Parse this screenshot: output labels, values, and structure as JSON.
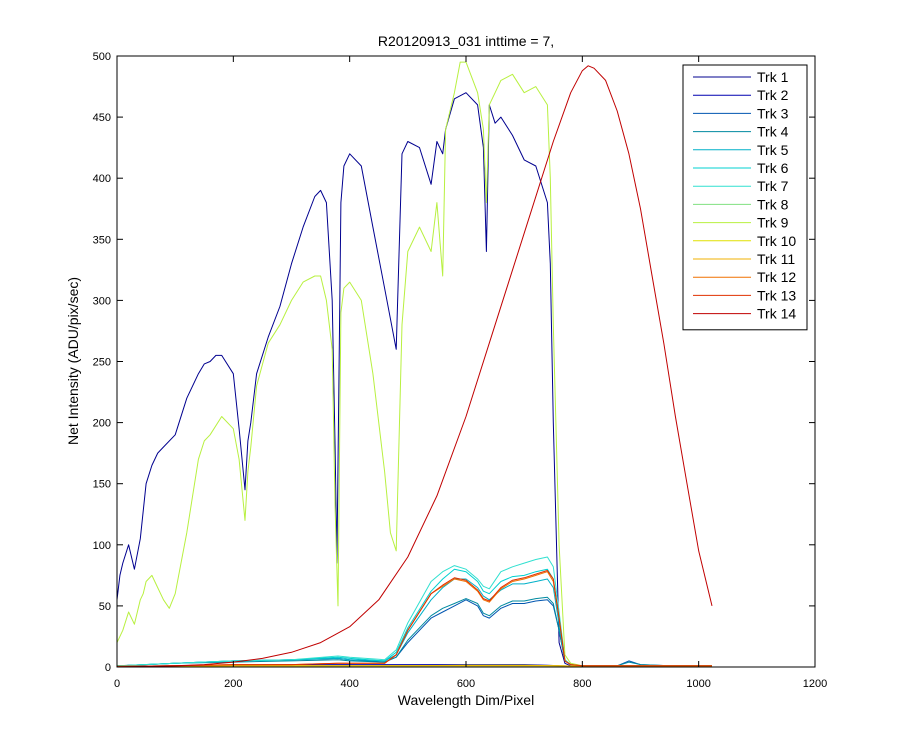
{
  "chart_data": {
    "type": "line",
    "title": "R20120913_031 inttime = 7,",
    "xlabel": "Wavelength Dim/Pixel",
    "ylabel": "Net Intensity (ADU/pix/sec)",
    "xlim": [
      0,
      1200
    ],
    "ylim": [
      0,
      500
    ],
    "xticks": [
      0,
      200,
      400,
      600,
      800,
      1000,
      1200
    ],
    "yticks": [
      0,
      50,
      100,
      150,
      200,
      250,
      300,
      350,
      400,
      450,
      500
    ],
    "grid": false,
    "legend_position": "top-right",
    "series": [
      {
        "name": "Trk 1",
        "color": "#00008f",
        "x": [
          0,
          5,
          10,
          20,
          30,
          40,
          50,
          60,
          70,
          80,
          100,
          120,
          140,
          150,
          160,
          170,
          180,
          200,
          210,
          220,
          225,
          230,
          240,
          260,
          280,
          300,
          320,
          340,
          350,
          360,
          370,
          375,
          378,
          385,
          390,
          400,
          420,
          440,
          460,
          470,
          480,
          490,
          500,
          520,
          540,
          550,
          560,
          565,
          580,
          600,
          620,
          630,
          635,
          640,
          650,
          660,
          680,
          700,
          720,
          740,
          745,
          750,
          760,
          770,
          780,
          800,
          850,
          900,
          950,
          1000,
          1023
        ],
        "y": [
          55,
          75,
          85,
          100,
          80,
          105,
          150,
          165,
          175,
          180,
          190,
          220,
          240,
          248,
          250,
          255,
          255,
          240,
          195,
          145,
          185,
          200,
          240,
          270,
          295,
          330,
          360,
          385,
          390,
          380,
          300,
          180,
          85,
          380,
          410,
          420,
          410,
          360,
          310,
          285,
          260,
          420,
          430,
          425,
          395,
          430,
          420,
          440,
          465,
          470,
          460,
          425,
          340,
          460,
          445,
          450,
          435,
          415,
          410,
          380,
          330,
          200,
          20,
          3,
          1,
          0.5,
          0.5,
          0.5,
          0.5,
          0.5,
          0.5
        ]
      },
      {
        "name": "Trk 2",
        "color": "#0000b0",
        "x": [
          0,
          100,
          200,
          300,
          400,
          500,
          600,
          700,
          740,
          760,
          800,
          1023
        ],
        "y": [
          0.5,
          1,
          1.5,
          2,
          2,
          2,
          2,
          2,
          1.5,
          1,
          0.5,
          0.5
        ]
      },
      {
        "name": "Trk 3",
        "color": "#0055b0",
        "x": [
          0,
          50,
          100,
          200,
          300,
          380,
          400,
          460,
          480,
          500,
          540,
          560,
          580,
          600,
          620,
          630,
          640,
          660,
          680,
          700,
          720,
          740,
          750,
          760,
          770,
          780,
          800,
          860,
          880,
          900,
          950,
          1023
        ],
        "y": [
          1,
          2,
          3,
          5,
          6,
          7,
          6,
          4,
          8,
          20,
          40,
          45,
          50,
          55,
          50,
          42,
          40,
          48,
          52,
          52,
          54,
          55,
          50,
          30,
          5,
          2,
          1,
          1,
          5,
          2,
          1,
          1
        ]
      },
      {
        "name": "Trk 4",
        "color": "#008aa0",
        "x": [
          0,
          50,
          100,
          200,
          300,
          380,
          400,
          460,
          480,
          500,
          540,
          560,
          580,
          600,
          620,
          630,
          640,
          660,
          680,
          700,
          720,
          740,
          750,
          760,
          770,
          780,
          800,
          860,
          880,
          900,
          950,
          1023
        ],
        "y": [
          1,
          2,
          3,
          4,
          5,
          6,
          5,
          4,
          8,
          22,
          42,
          48,
          52,
          56,
          52,
          44,
          42,
          50,
          54,
          54,
          56,
          57,
          52,
          30,
          5,
          2,
          1,
          1,
          4,
          2,
          1,
          1
        ]
      },
      {
        "name": "Trk 5",
        "color": "#00b0c8",
        "x": [
          0,
          100,
          200,
          300,
          380,
          400,
          460,
          480,
          500,
          540,
          560,
          580,
          600,
          620,
          630,
          640,
          660,
          680,
          700,
          720,
          740,
          750,
          760,
          770,
          780,
          800,
          1023
        ],
        "y": [
          1,
          3,
          5,
          6,
          7,
          6,
          5,
          10,
          28,
          55,
          65,
          72,
          72,
          65,
          58,
          55,
          63,
          68,
          68,
          70,
          72,
          65,
          35,
          5,
          2,
          1,
          1
        ]
      },
      {
        "name": "Trk 6",
        "color": "#00d0d0",
        "x": [
          0,
          100,
          200,
          300,
          380,
          400,
          460,
          480,
          500,
          540,
          560,
          580,
          600,
          620,
          630,
          640,
          660,
          680,
          700,
          720,
          740,
          750,
          760,
          770,
          780,
          800,
          1023
        ],
        "y": [
          1,
          3,
          5,
          6,
          8,
          7,
          5,
          12,
          32,
          62,
          72,
          80,
          78,
          70,
          62,
          60,
          70,
          74,
          75,
          78,
          80,
          72,
          40,
          6,
          2,
          1,
          1
        ]
      },
      {
        "name": "Trk 7",
        "color": "#30e0d0",
        "x": [
          0,
          100,
          200,
          300,
          380,
          400,
          460,
          480,
          500,
          540,
          560,
          580,
          600,
          620,
          630,
          640,
          660,
          680,
          700,
          720,
          740,
          750,
          760,
          770,
          780,
          800,
          1023
        ],
        "y": [
          1,
          3,
          5,
          6,
          9,
          8,
          6,
          14,
          36,
          70,
          78,
          83,
          80,
          72,
          66,
          64,
          78,
          82,
          85,
          88,
          90,
          82,
          45,
          6,
          2,
          1,
          1
        ]
      },
      {
        "name": "Trk 8",
        "color": "#80e080",
        "x": [
          0,
          100,
          200,
          300,
          400,
          500,
          600,
          700,
          760,
          800,
          1023
        ],
        "y": [
          0.5,
          0.5,
          1,
          1,
          1,
          1,
          1,
          1,
          1,
          0.5,
          0.5
        ]
      },
      {
        "name": "Trk 9",
        "color": "#b8f040",
        "x": [
          0,
          10,
          20,
          30,
          40,
          45,
          50,
          60,
          70,
          80,
          90,
          100,
          120,
          140,
          150,
          160,
          180,
          200,
          210,
          220,
          225,
          230,
          240,
          260,
          280,
          300,
          320,
          340,
          350,
          360,
          370,
          375,
          380,
          385,
          390,
          400,
          420,
          440,
          460,
          470,
          480,
          490,
          500,
          520,
          540,
          550,
          560,
          565,
          580,
          590,
          600,
          620,
          630,
          635,
          640,
          650,
          660,
          680,
          700,
          720,
          740,
          745,
          750,
          760,
          770,
          780,
          800,
          850,
          900,
          950,
          1023
        ],
        "y": [
          20,
          30,
          45,
          35,
          55,
          60,
          70,
          75,
          65,
          55,
          48,
          60,
          110,
          170,
          185,
          190,
          205,
          195,
          170,
          120,
          160,
          180,
          230,
          265,
          280,
          300,
          315,
          320,
          320,
          300,
          260,
          130,
          50,
          290,
          310,
          315,
          300,
          240,
          160,
          110,
          95,
          280,
          340,
          360,
          340,
          380,
          320,
          440,
          470,
          495,
          495,
          470,
          440,
          380,
          460,
          470,
          480,
          485,
          470,
          475,
          460,
          400,
          280,
          100,
          10,
          3,
          1,
          1,
          1,
          1,
          1
        ]
      },
      {
        "name": "Trk 10",
        "color": "#e0e000",
        "x": [
          0,
          100,
          200,
          300,
          400,
          500,
          600,
          700,
          760,
          800,
          1023
        ],
        "y": [
          0.5,
          0.5,
          1,
          1,
          1,
          1,
          1.5,
          1.5,
          1,
          0.5,
          0.5
        ]
      },
      {
        "name": "Trk 11",
        "color": "#f0b000",
        "x": [
          0,
          100,
          200,
          300,
          400,
          500,
          600,
          700,
          760,
          800,
          1023
        ],
        "y": [
          0.5,
          1,
          1,
          1,
          1,
          1,
          1,
          1,
          1,
          0.5,
          0.5
        ]
      },
      {
        "name": "Trk 12",
        "color": "#f07000",
        "x": [
          0,
          100,
          200,
          300,
          380,
          400,
          460,
          480,
          500,
          540,
          560,
          580,
          600,
          620,
          630,
          640,
          660,
          680,
          700,
          720,
          740,
          750,
          760,
          770,
          780,
          800,
          1023
        ],
        "y": [
          0.5,
          1,
          2,
          2,
          3,
          3,
          3,
          10,
          30,
          60,
          66,
          72,
          70,
          62,
          55,
          53,
          64,
          70,
          72,
          75,
          78,
          70,
          40,
          5,
          2,
          1,
          1
        ]
      },
      {
        "name": "Trk 13",
        "color": "#e03000",
        "x": [
          0,
          100,
          200,
          300,
          380,
          400,
          460,
          480,
          500,
          540,
          560,
          580,
          600,
          620,
          630,
          640,
          660,
          680,
          700,
          720,
          740,
          750,
          760,
          770,
          780,
          800,
          1023
        ],
        "y": [
          0.5,
          1,
          2,
          2,
          3,
          3,
          3,
          10,
          30,
          60,
          67,
          73,
          71,
          63,
          56,
          54,
          65,
          71,
          73,
          76,
          79,
          72,
          40,
          5,
          2,
          1,
          1
        ]
      },
      {
        "name": "Trk 14",
        "color": "#c00000",
        "x": [
          0,
          50,
          100,
          150,
          200,
          250,
          300,
          350,
          400,
          450,
          500,
          550,
          600,
          650,
          700,
          750,
          780,
          800,
          810,
          820,
          840,
          860,
          880,
          900,
          920,
          940,
          960,
          980,
          1000,
          1023
        ],
        "y": [
          0,
          0.5,
          1,
          2,
          4,
          7,
          12,
          20,
          33,
          55,
          90,
          140,
          205,
          280,
          355,
          430,
          470,
          488,
          492,
          490,
          480,
          455,
          420,
          375,
          320,
          265,
          205,
          150,
          95,
          50
        ]
      }
    ]
  }
}
